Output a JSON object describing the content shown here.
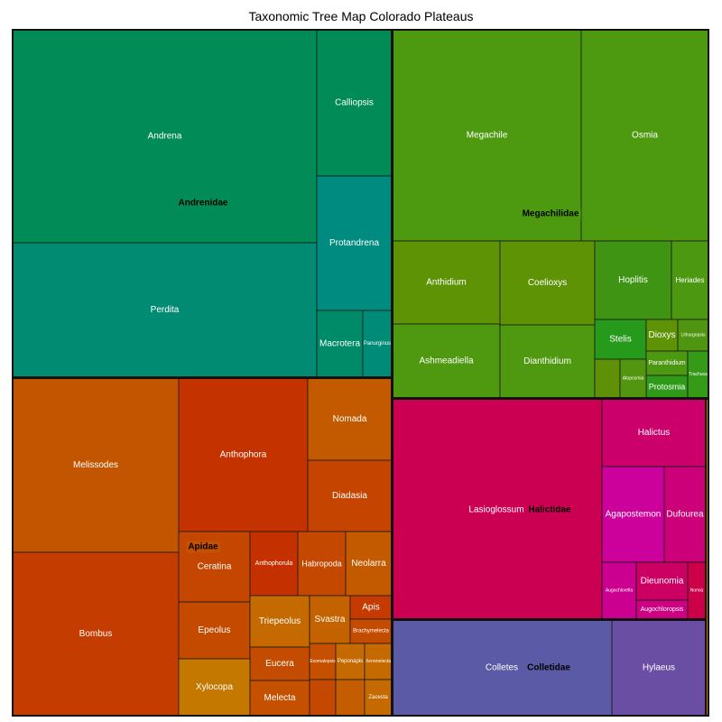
{
  "chart_data": {
    "type": "treemap",
    "title": "Taxonomic Tree Map Colorado Plateaus",
    "families": [
      {
        "name": "Andrenidae",
        "genera": [
          {
            "name": "Andrena",
            "color": "#008b57"
          },
          {
            "name": "Perdita",
            "color": "#008b72"
          },
          {
            "name": "Calliopsis",
            "color": "#008b57"
          },
          {
            "name": "Protandrena",
            "color": "#008b80"
          },
          {
            "name": "Macrotera",
            "color": "#008b68"
          },
          {
            "name": "Panurginus",
            "color": "#008b78"
          }
        ]
      },
      {
        "name": "Megachilidae",
        "genera": [
          {
            "name": "Megachile",
            "color": "#4d9a10"
          },
          {
            "name": "Osmia",
            "color": "#4d9a10"
          },
          {
            "name": "Anthidium",
            "color": "#5f9306"
          },
          {
            "name": "Coelioxys",
            "color": "#5f9306"
          },
          {
            "name": "Ashmeadiella",
            "color": "#4f9910"
          },
          {
            "name": "Dianthidium",
            "color": "#4f9910"
          },
          {
            "name": "Hoplitis",
            "color": "#3f9414"
          },
          {
            "name": "Heriades",
            "color": "#4c9810"
          },
          {
            "name": "Stelis",
            "color": "#269a1a"
          },
          {
            "name": "Dioxys",
            "color": "#5f9306"
          },
          {
            "name": "Lithurgopsis",
            "color": "#509510"
          },
          {
            "name": "Paranthidium",
            "color": "#4c9810"
          },
          {
            "name": "Protosmia",
            "color": "#2e9a18"
          },
          {
            "name": "Trachusa",
            "color": "#359a17"
          },
          {
            "name": "",
            "color": "#5e9008"
          },
          {
            "name": "Atoposmia",
            "color": "#529610"
          }
        ]
      },
      {
        "name": "Apidae",
        "genera": [
          {
            "name": "Melissodes",
            "color": "#c45500"
          },
          {
            "name": "Bombus",
            "color": "#c43c00"
          },
          {
            "name": "Anthophora",
            "color": "#c43200"
          },
          {
            "name": "Nomada",
            "color": "#c45a00"
          },
          {
            "name": "Diadasia",
            "color": "#c44400"
          },
          {
            "name": "Ceratina",
            "color": "#c44600"
          },
          {
            "name": "Anthophorula",
            "color": "#c43000"
          },
          {
            "name": "Habropoda",
            "color": "#c44800"
          },
          {
            "name": "Neolarra",
            "color": "#c45a00"
          },
          {
            "name": "Epeolus",
            "color": "#c44a00"
          },
          {
            "name": "Triepeolus",
            "color": "#c46a00"
          },
          {
            "name": "Svastra",
            "color": "#c46200"
          },
          {
            "name": "Apis",
            "color": "#c43a00"
          },
          {
            "name": "Brachymelecta",
            "color": "#c44c00"
          },
          {
            "name": "Eucera",
            "color": "#c44c00"
          },
          {
            "name": "Xylocopa",
            "color": "#c47800"
          },
          {
            "name": "Melecta",
            "color": "#c45000"
          },
          {
            "name": "Exomalopsis",
            "color": "#c45000"
          },
          {
            "name": "Peponapis",
            "color": "#c46a00"
          },
          {
            "name": "Xeromelecta",
            "color": "#c46a00"
          },
          {
            "name": "",
            "color": "#c44800"
          },
          {
            "name": "",
            "color": "#c45c00"
          },
          {
            "name": "Zacesta",
            "color": "#c46a00"
          }
        ]
      },
      {
        "name": "Halictidae",
        "genera": [
          {
            "name": "Lasioglossum",
            "color": "#cc0052"
          },
          {
            "name": "Halictus",
            "color": "#cc006a"
          },
          {
            "name": "Agapostemon",
            "color": "#cc009a"
          },
          {
            "name": "Dufourea",
            "color": "#cc0078"
          },
          {
            "name": "Augochlorella",
            "color": "#cc0090"
          },
          {
            "name": "Dieunomia",
            "color": "#cc0063"
          },
          {
            "name": "Augochloropsis",
            "color": "#cc0080"
          },
          {
            "name": "Nomia",
            "color": "#cc0048"
          }
        ]
      },
      {
        "name": "Colletidae",
        "genera": [
          {
            "name": "Colletes",
            "color": "#5a5aa6"
          },
          {
            "name": "Hylaeus",
            "color": "#6a4ea3"
          }
        ]
      },
      {
        "name": "",
        "genera": [
          {
            "name": "",
            "color": "#c47800"
          }
        ]
      }
    ]
  }
}
